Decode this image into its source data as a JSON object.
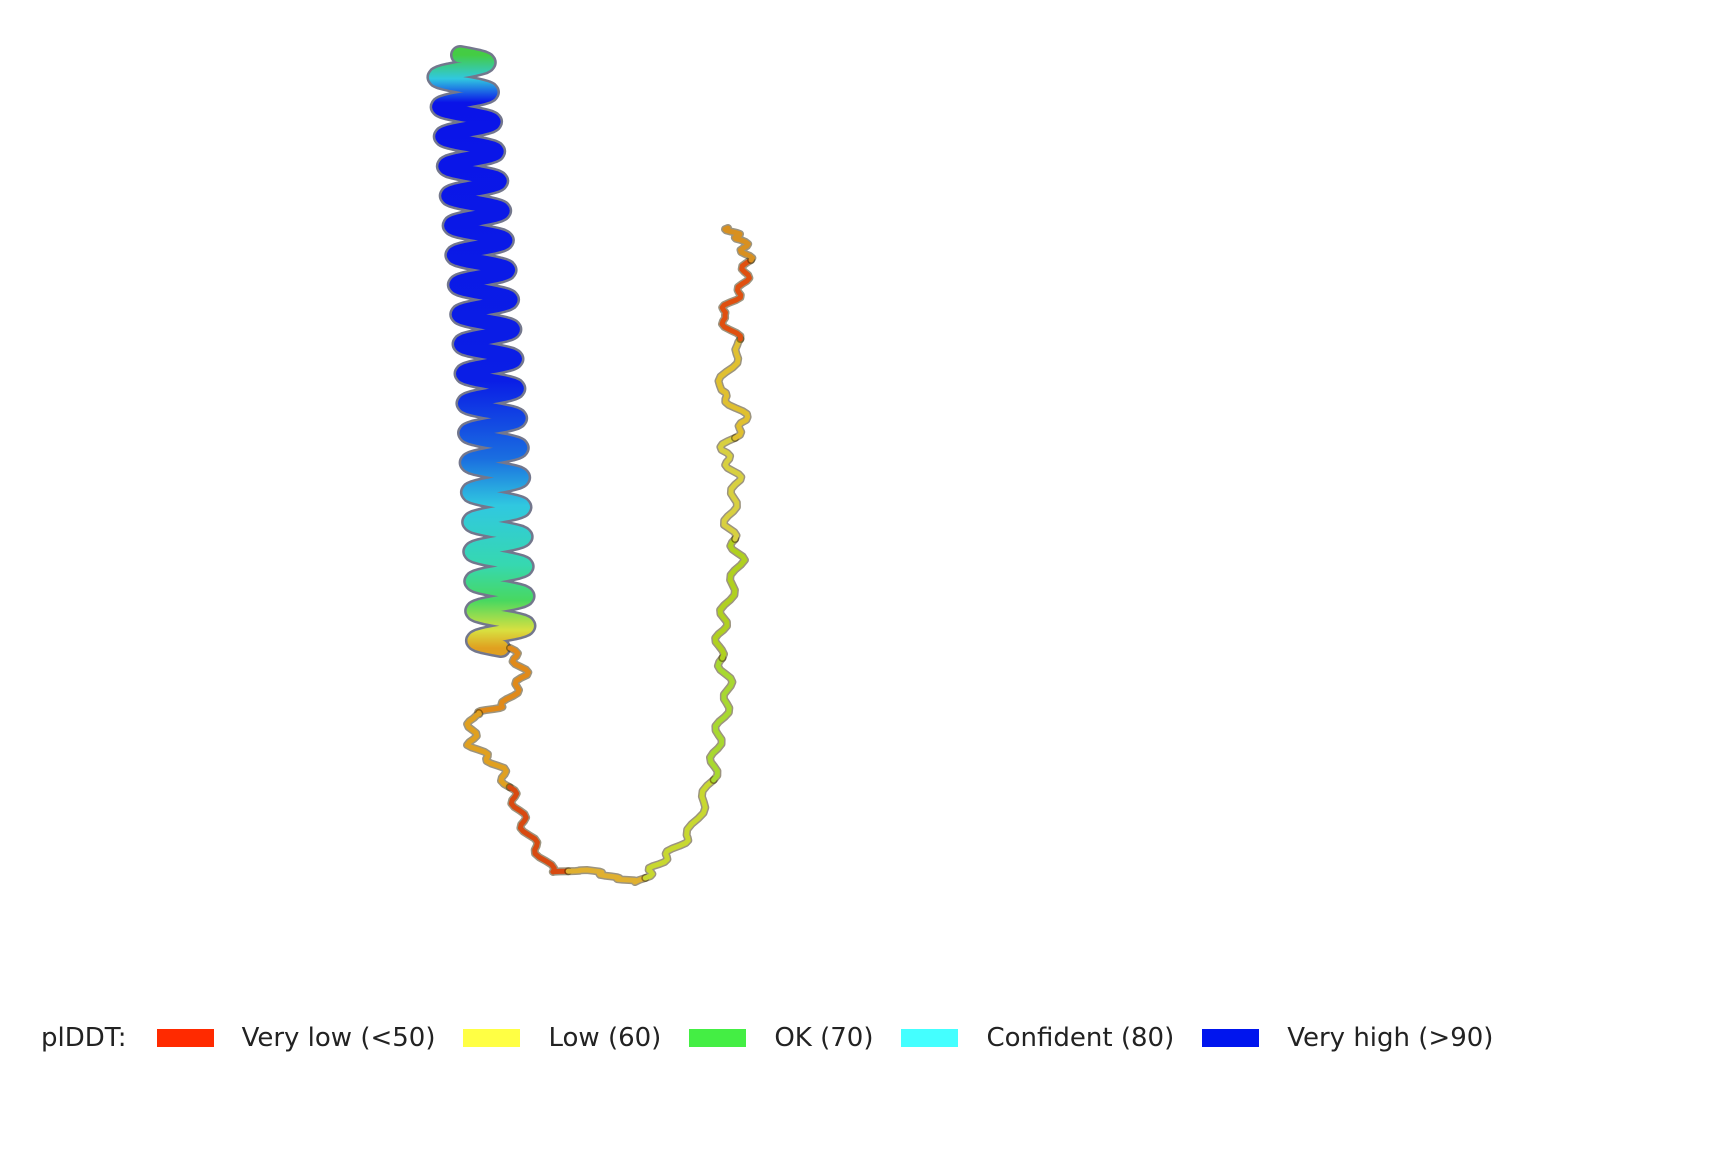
{
  "legend": {
    "title": "plDDT:",
    "items": [
      {
        "label": "Very low (<50)",
        "color": "#ff2a00"
      },
      {
        "label": "Low (60)",
        "color": "#ffff44"
      },
      {
        "label": "OK (70)",
        "color": "#44ee44"
      },
      {
        "label": "Confident (80)",
        "color": "#44ffff"
      },
      {
        "label": "Very high (>90)",
        "color": "#0015ee"
      }
    ]
  },
  "structure": {
    "helix_gradient": [
      "#0a14e8",
      "#0a2ee0",
      "#1a6ee0",
      "#30c8e0",
      "#36d8c0",
      "#40d870",
      "#d8e040",
      "#e0a020"
    ],
    "coil_colors": [
      "#e08a1a",
      "#e0a020",
      "#d84a10",
      "#e0b030",
      "#c8d830",
      "#a8d830",
      "#b0d020",
      "#d8d040",
      "#e0c030",
      "#e05010",
      "#d89020"
    ]
  }
}
